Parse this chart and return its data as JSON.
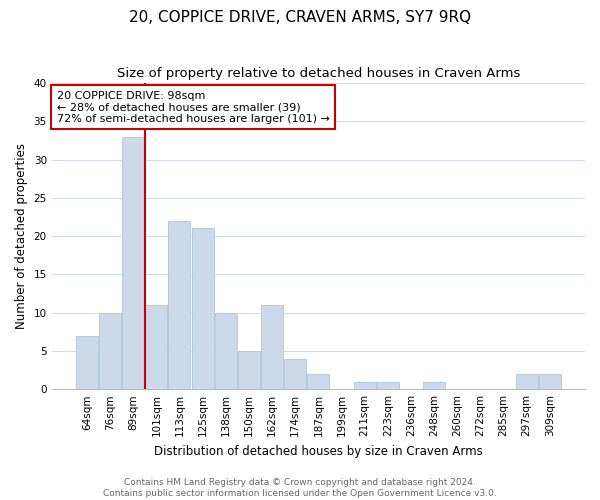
{
  "title": "20, COPPICE DRIVE, CRAVEN ARMS, SY7 9RQ",
  "subtitle": "Size of property relative to detached houses in Craven Arms",
  "xlabel": "Distribution of detached houses by size in Craven Arms",
  "ylabel": "Number of detached properties",
  "bar_labels": [
    "64sqm",
    "76sqm",
    "89sqm",
    "101sqm",
    "113sqm",
    "125sqm",
    "138sqm",
    "150sqm",
    "162sqm",
    "174sqm",
    "187sqm",
    "199sqm",
    "211sqm",
    "223sqm",
    "236sqm",
    "248sqm",
    "260sqm",
    "272sqm",
    "285sqm",
    "297sqm",
    "309sqm"
  ],
  "bar_values": [
    7,
    10,
    33,
    11,
    22,
    21,
    10,
    5,
    11,
    4,
    2,
    0,
    1,
    1,
    0,
    1,
    0,
    0,
    0,
    2,
    2
  ],
  "bar_color": "#ccd9e8",
  "bar_edge_color": "#aec6d8",
  "vline_x_index": 3,
  "vline_color": "#cc0000",
  "annotation_line1": "20 COPPICE DRIVE: 98sqm",
  "annotation_line2": "← 28% of detached houses are smaller (39)",
  "annotation_line3": "72% of semi-detached houses are larger (101) →",
  "annotation_box_color": "#ffffff",
  "annotation_box_edge": "#cc0000",
  "ylim": [
    0,
    40
  ],
  "yticks": [
    0,
    5,
    10,
    15,
    20,
    25,
    30,
    35,
    40
  ],
  "footer_line1": "Contains HM Land Registry data © Crown copyright and database right 2024.",
  "footer_line2": "Contains public sector information licensed under the Open Government Licence v3.0.",
  "bg_color": "#ffffff",
  "grid_color": "#d0daea",
  "title_fontsize": 11,
  "subtitle_fontsize": 9.5,
  "axis_label_fontsize": 8.5,
  "tick_fontsize": 7.5,
  "annotation_fontsize": 8,
  "footer_fontsize": 6.5
}
